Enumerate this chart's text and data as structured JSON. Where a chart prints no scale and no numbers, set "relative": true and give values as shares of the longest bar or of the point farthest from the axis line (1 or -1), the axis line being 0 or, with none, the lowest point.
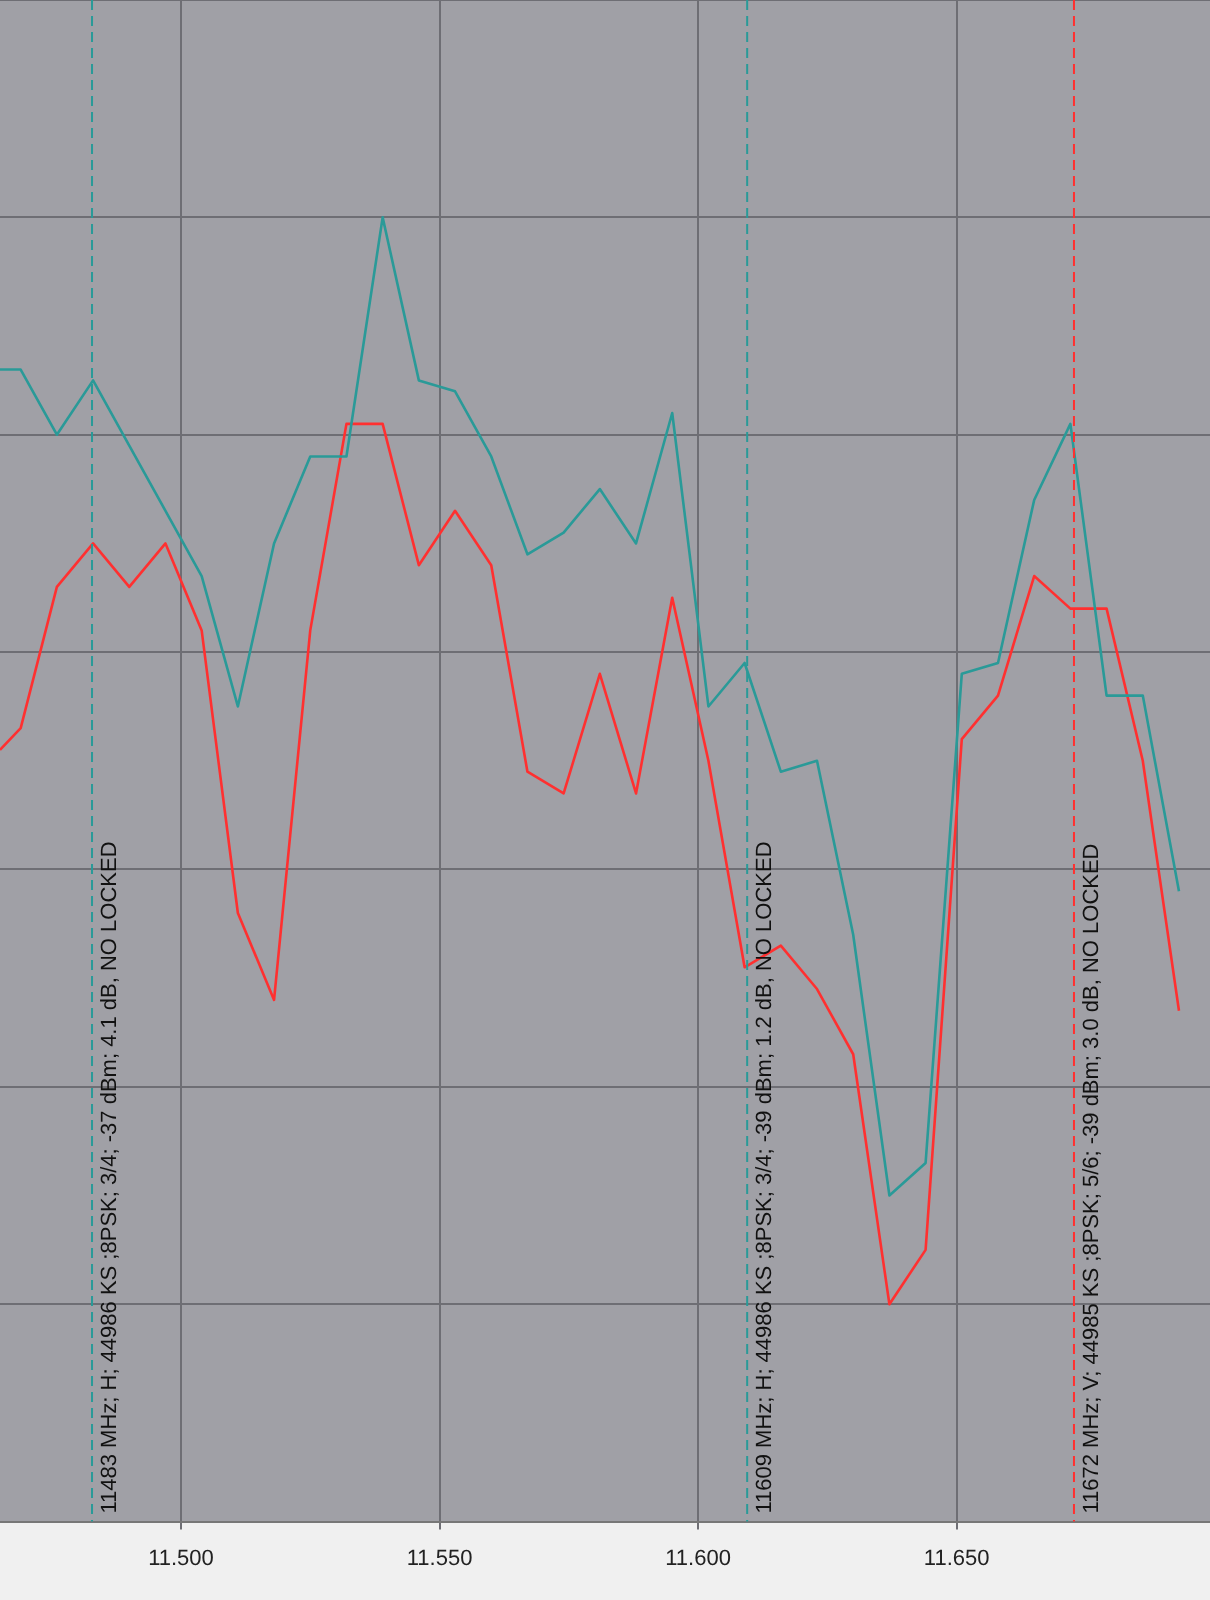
{
  "chart_data": {
    "type": "line",
    "relative": true,
    "grid": true,
    "legend": false,
    "marker": "none",
    "line_style": "solid",
    "x": [
      11.465,
      11.469,
      11.476,
      11.483,
      11.49,
      11.497,
      11.504,
      11.511,
      11.518,
      11.525,
      11.532,
      11.539,
      11.546,
      11.553,
      11.56,
      11.567,
      11.574,
      11.581,
      11.588,
      11.595,
      11.602,
      11.609,
      11.616,
      11.623,
      11.63,
      11.637,
      11.644,
      11.651,
      11.658,
      11.665,
      11.672,
      11.679,
      11.686,
      11.693
    ],
    "xlim": [
      11.465,
      11.699
    ],
    "xticks": [
      {
        "value": 11.5,
        "label": "11.500"
      },
      {
        "value": 11.55,
        "label": "11.550"
      },
      {
        "value": 11.6,
        "label": "11.600"
      },
      {
        "value": 11.65,
        "label": "11.650"
      }
    ],
    "series": [
      {
        "color": "#2a9a98",
        "values": [
          0.86,
          0.86,
          0.8,
          0.85,
          0.79,
          0.73,
          0.67,
          0.55,
          0.7,
          0.78,
          0.78,
          1.0,
          0.85,
          0.84,
          0.78,
          0.69,
          0.71,
          0.75,
          0.7,
          0.82,
          0.55,
          0.59,
          0.49,
          0.5,
          0.34,
          0.1,
          0.13,
          0.58,
          0.59,
          0.74,
          0.81,
          0.56,
          0.56,
          0.38
        ]
      },
      {
        "color": "#ff3030",
        "values": [
          0.51,
          0.53,
          0.66,
          0.7,
          0.66,
          0.7,
          0.62,
          0.36,
          0.28,
          0.62,
          0.81,
          0.81,
          0.68,
          0.73,
          0.68,
          0.49,
          0.47,
          0.58,
          0.47,
          0.65,
          0.5,
          0.31,
          0.33,
          0.29,
          0.23,
          0.0,
          0.05,
          0.52,
          0.56,
          0.67,
          0.64,
          0.64,
          0.5,
          0.27
        ]
      }
    ],
    "ref_lines": [
      {
        "axis": "x",
        "value": 11.4826,
        "label": "11483 MHz; H; 44986 KS ;8PSK; 3/4; -37 dBm; 4.1 dB, NO LOCKED",
        "color": "#2a9a98",
        "line_style": "dashed"
      },
      {
        "axis": "x",
        "value": 11.6093,
        "label": "11609 MHz; H; 44986 KS ;8PSK; 3/4; -39 dBm; 1.2 dB, NO LOCKED",
        "color": "#2a9a98",
        "line_style": "dashed"
      },
      {
        "axis": "x",
        "value": 11.6725,
        "label": "11672 MHz; V; 44985 KS ;8PSK; 5/6; -39 dBm; 3.0 dB, NO LOCKED",
        "color": "#ff3030",
        "line_style": "dashed"
      }
    ]
  }
}
